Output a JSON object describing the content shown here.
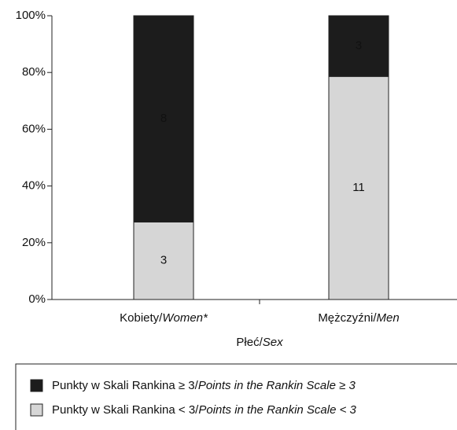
{
  "chart_data": {
    "type": "stacked_bar",
    "x_label": "Płeć/Sex",
    "categories": [
      "Kobiety/Women*",
      "Mężczyźni/Men"
    ],
    "series": [
      {
        "name": "Punkty w Skali Rankina < 3/Points in the Rankin Scale < 3",
        "color": "#d6d6d6",
        "values": [
          27.3,
          78.6
        ],
        "counts": [
          3,
          11
        ]
      },
      {
        "name": "Punkty w Skali Rankina ≥ 3/Points in the Rankin Scale ≥ 3",
        "color": "#1c1c1c",
        "values": [
          72.7,
          21.4
        ],
        "counts": [
          8,
          3
        ]
      }
    ],
    "ylim": [
      0,
      100
    ],
    "yticks": [
      {
        "value": 0,
        "label": "0%"
      },
      {
        "value": 20,
        "label": "20%"
      },
      {
        "value": 40,
        "label": "40%"
      },
      {
        "value": 60,
        "label": "60%"
      },
      {
        "value": 80,
        "label": "80%"
      },
      {
        "value": 100,
        "label": "100%"
      }
    ]
  }
}
